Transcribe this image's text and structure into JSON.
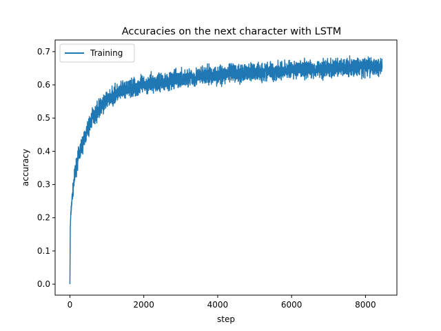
{
  "chart_data": {
    "type": "line",
    "title": "Accuracies on the next character with LSTM",
    "xlabel": "step",
    "ylabel": "accuracy",
    "xlim": [
      -400,
      8850
    ],
    "ylim": [
      -0.033,
      0.735
    ],
    "x_ticks": [
      0,
      2000,
      4000,
      6000,
      8000
    ],
    "y_ticks": [
      0.0,
      0.1,
      0.2,
      0.3,
      0.4,
      0.5,
      0.6,
      0.7
    ],
    "x_tick_labels": [
      "0",
      "2000",
      "4000",
      "6000",
      "8000"
    ],
    "y_tick_labels": [
      "0.0",
      "0.1",
      "0.2",
      "0.3",
      "0.4",
      "0.5",
      "0.6",
      "0.7"
    ],
    "grid": false,
    "legend_position": "top-left",
    "series": [
      {
        "name": "Training",
        "color": "#1f77b4",
        "x_range": [
          0,
          8450
        ],
        "noisy": true,
        "trend": {
          "x": [
            0,
            10,
            30,
            60,
            100,
            150,
            200,
            300,
            400,
            500,
            600,
            800,
            1000,
            1200,
            1500,
            2000,
            2500,
            3000,
            3500,
            4000,
            4500,
            5000,
            5500,
            6000,
            6500,
            7000,
            7500,
            8000,
            8450
          ],
          "y": [
            0.0,
            0.17,
            0.22,
            0.26,
            0.3,
            0.34,
            0.37,
            0.41,
            0.44,
            0.47,
            0.5,
            0.53,
            0.555,
            0.57,
            0.585,
            0.6,
            0.61,
            0.618,
            0.625,
            0.63,
            0.635,
            0.638,
            0.642,
            0.645,
            0.647,
            0.65,
            0.652,
            0.655,
            0.657
          ]
        },
        "noise_amplitude": 0.018
      }
    ]
  }
}
